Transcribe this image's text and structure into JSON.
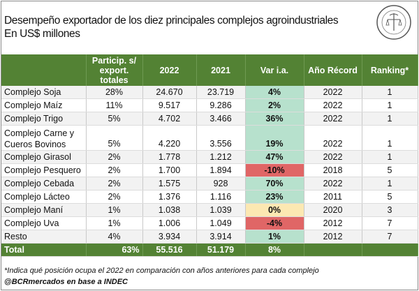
{
  "title_line1": "Desempeño exportador de los diez principales complejos agroindustriales",
  "title_line2": "En US$ millones",
  "logo_text": "Bolsa de Comercio de Rosario",
  "colors": {
    "header": "#538234",
    "positive": "#b7e1cd",
    "negative": "#e06666",
    "neutral": "#fce8b2"
  },
  "chart_data": {
    "type": "table",
    "columns": [
      "",
      "Particip. s/ export. totales",
      "2022",
      "2021",
      "Var i.a.",
      "Año Récord",
      "Ranking*"
    ],
    "rows": [
      {
        "name": "Complejo Soja",
        "share": "28%",
        "y2022": "24.670",
        "y2021": "23.719",
        "var": "4%",
        "record": "2022",
        "rank": "1",
        "sign": "pos"
      },
      {
        "name": "Complejo Maíz",
        "share": "11%",
        "y2022": "9.517",
        "y2021": "9.286",
        "var": "2%",
        "record": "2022",
        "rank": "1",
        "sign": "pos"
      },
      {
        "name": "Complejo Trigo",
        "share": "5%",
        "y2022": "4.702",
        "y2021": "3.466",
        "var": "36%",
        "record": "2022",
        "rank": "1",
        "sign": "pos"
      },
      {
        "name": "Complejo Carne y Cueros Bovinos",
        "share": "5%",
        "y2022": "4.220",
        "y2021": "3.556",
        "var": "19%",
        "record": "2022",
        "rank": "1",
        "sign": "pos"
      },
      {
        "name": "Complejo Girasol",
        "share": "2%",
        "y2022": "1.778",
        "y2021": "1.212",
        "var": "47%",
        "record": "2022",
        "rank": "1",
        "sign": "pos"
      },
      {
        "name": "Complejo Pesquero",
        "share": "2%",
        "y2022": "1.700",
        "y2021": "1.894",
        "var": "-10%",
        "record": "2018",
        "rank": "5",
        "sign": "neg"
      },
      {
        "name": "Complejo Cebada",
        "share": "2%",
        "y2022": "1.575",
        "y2021": "928",
        "var": "70%",
        "record": "2022",
        "rank": "1",
        "sign": "pos"
      },
      {
        "name": "Complejo Lácteo",
        "share": "2%",
        "y2022": "1.376",
        "y2021": "1.116",
        "var": "23%",
        "record": "2011",
        "rank": "5",
        "sign": "pos"
      },
      {
        "name": "Complejo Maní",
        "share": "1%",
        "y2022": "1.038",
        "y2021": "1.039",
        "var": "0%",
        "record": "2020",
        "rank": "3",
        "sign": "zero"
      },
      {
        "name": "Complejo Uva",
        "share": "1%",
        "y2022": "1.006",
        "y2021": "1.049",
        "var": "-4%",
        "record": "2012",
        "rank": "7",
        "sign": "neg"
      },
      {
        "name": "Resto",
        "share": "4%",
        "y2022": "3.934",
        "y2021": "3.914",
        "var": "1%",
        "record": "2012",
        "rank": "7",
        "sign": "pos"
      }
    ],
    "total": {
      "name": "Total",
      "share": "63%",
      "y2022": "55.516",
      "y2021": "51.179",
      "var": "8%"
    }
  },
  "footnote": "*Indica qué posición ocupa el 2022 en comparación con años anteriores para cada complejo",
  "source": "@BCRmercados en base a INDEC"
}
